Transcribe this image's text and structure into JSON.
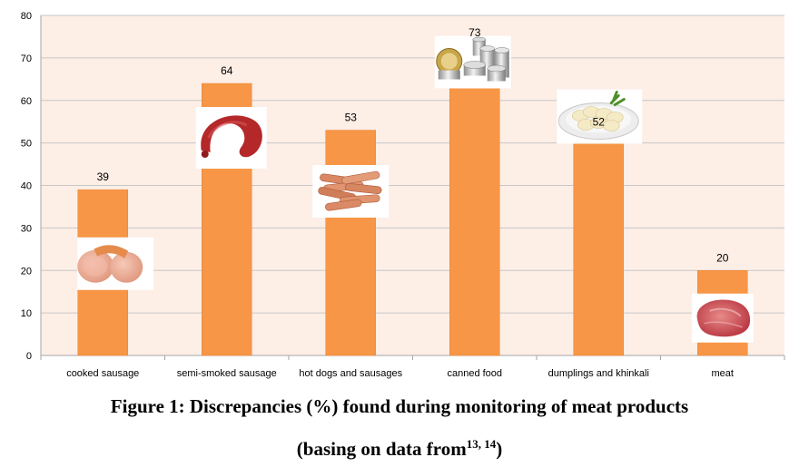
{
  "chart_data": {
    "type": "bar",
    "categories": [
      "cooked sausage",
      "semi-smoked sausage",
      "hot dogs and sausages",
      "canned food",
      "dumplings and khinkali",
      "meat"
    ],
    "values": [
      39,
      64,
      53,
      73,
      52,
      20
    ],
    "data_labels": [
      "39",
      "64",
      "53",
      "73",
      "52",
      "20"
    ],
    "ylim": [
      0,
      80
    ],
    "yticks": [
      0,
      10,
      20,
      30,
      40,
      50,
      60,
      70,
      80
    ],
    "grid": true,
    "colors": {
      "bar": "#F79646",
      "plot_background": "#FDEEE6",
      "grid": "#C8C8C8",
      "axis": "#A6A6A6"
    },
    "icons": [
      "cooked-sausage-photo",
      "semi-smoked-sausage-photo",
      "hot-dogs-photo",
      "canned-food-photo",
      "dumplings-photo",
      "meat-photo"
    ]
  },
  "caption": {
    "line1": "Figure 1: Discrepancies (%) found during monitoring of meat products",
    "line2_prefix": "(basing on data from",
    "refs": "13, 14",
    "line2_suffix": ")"
  }
}
